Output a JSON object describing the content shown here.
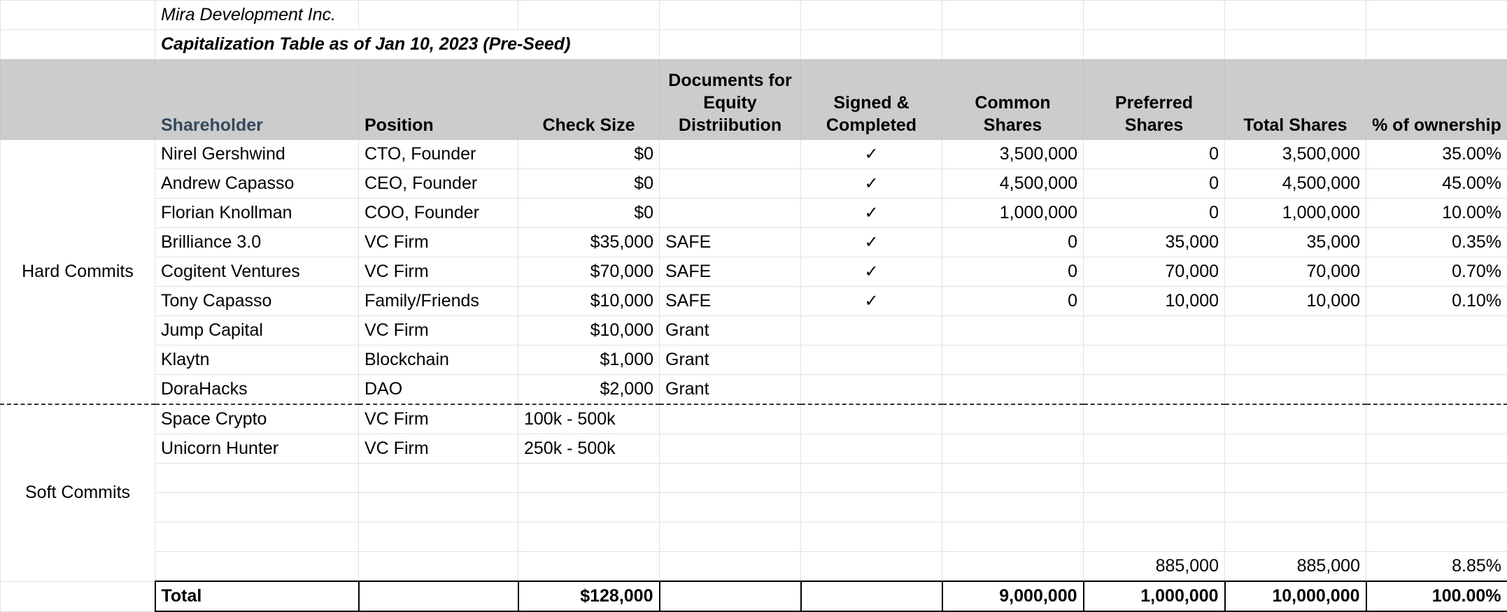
{
  "sheet": {
    "company": "Mira Development Inc.",
    "subtitle": "Capitalization Table as of Jan 10, 2023 (Pre-Seed)"
  },
  "headers": {
    "shareholder": "Shareholder",
    "position": "Position",
    "check_size": "Check Size",
    "documents": "Documents for Equity Distriibution",
    "signed": "Signed & Completed",
    "common": "Common Shares",
    "preferred": "Preferred Shares",
    "total_shares": "Total Shares",
    "ownership": "% of ownership"
  },
  "groups": {
    "hard": "Hard Commits",
    "soft": "Soft Commits"
  },
  "rows": [
    {
      "shareholder": "Nirel Gershwind",
      "position": "CTO, Founder",
      "check": "$0",
      "doc": "",
      "signed": "✓",
      "common": "3,500,000",
      "preferred": "0",
      "total": "3,500,000",
      "pct": "35.00%"
    },
    {
      "shareholder": "Andrew Capasso",
      "position": "CEO, Founder",
      "check": "$0",
      "doc": "",
      "signed": "✓",
      "common": "4,500,000",
      "preferred": "0",
      "total": "4,500,000",
      "pct": "45.00%"
    },
    {
      "shareholder": "Florian Knollman",
      "position": "COO, Founder",
      "check": "$0",
      "doc": "",
      "signed": "✓",
      "common": "1,000,000",
      "preferred": "0",
      "total": "1,000,000",
      "pct": "10.00%"
    },
    {
      "shareholder": "Brilliance 3.0",
      "position": "VC Firm",
      "check": "$35,000",
      "doc": "SAFE",
      "signed": "✓",
      "common": "0",
      "preferred": "35,000",
      "total": "35,000",
      "pct": "0.35%"
    },
    {
      "shareholder": "Cogitent Ventures",
      "position": "VC Firm",
      "check": "$70,000",
      "doc": "SAFE",
      "signed": "✓",
      "common": "0",
      "preferred": "70,000",
      "total": "70,000",
      "pct": "0.70%"
    },
    {
      "shareholder": "Tony Capasso",
      "position": "Family/Friends",
      "check": "$10,000",
      "doc": "SAFE",
      "signed": "✓",
      "common": "0",
      "preferred": "10,000",
      "total": "10,000",
      "pct": "0.10%"
    },
    {
      "shareholder": "Jump Capital",
      "position": "VC Firm",
      "check": "$10,000",
      "doc": "Grant",
      "signed": "",
      "common": "",
      "preferred": "",
      "total": "",
      "pct": ""
    },
    {
      "shareholder": "Klaytn",
      "position": "Blockchain",
      "check": "$1,000",
      "doc": "Grant",
      "signed": "",
      "common": "",
      "preferred": "",
      "total": "",
      "pct": ""
    },
    {
      "shareholder": "DoraHacks",
      "position": "DAO",
      "check": "$2,000",
      "doc": "Grant",
      "signed": "",
      "common": "",
      "preferred": "",
      "total": "",
      "pct": ""
    },
    {
      "shareholder": "Space Crypto",
      "position": "VC Firm",
      "check": "100k - 500k",
      "doc": "",
      "signed": "",
      "common": "",
      "preferred": "",
      "total": "",
      "pct": ""
    },
    {
      "shareholder": "Unicorn Hunter",
      "position": "VC Firm",
      "check": "250k - 500k",
      "doc": "",
      "signed": "",
      "common": "",
      "preferred": "",
      "total": "",
      "pct": ""
    },
    {
      "shareholder": "",
      "position": "",
      "check": "",
      "doc": "",
      "signed": "",
      "common": "",
      "preferred": "",
      "total": "",
      "pct": ""
    },
    {
      "shareholder": "",
      "position": "",
      "check": "",
      "doc": "",
      "signed": "",
      "common": "",
      "preferred": "",
      "total": "",
      "pct": ""
    },
    {
      "shareholder": "",
      "position": "",
      "check": "",
      "doc": "",
      "signed": "",
      "common": "",
      "preferred": "",
      "total": "",
      "pct": ""
    },
    {
      "shareholder": "",
      "position": "",
      "check": "",
      "doc": "",
      "signed": "",
      "common": "",
      "preferred": "885,000",
      "total": "885,000",
      "pct": "8.85%"
    }
  ],
  "total": {
    "label": "Total",
    "check": "$128,000",
    "common": "9,000,000",
    "preferred": "1,000,000",
    "total": "10,000,000",
    "pct": "100.00%"
  }
}
